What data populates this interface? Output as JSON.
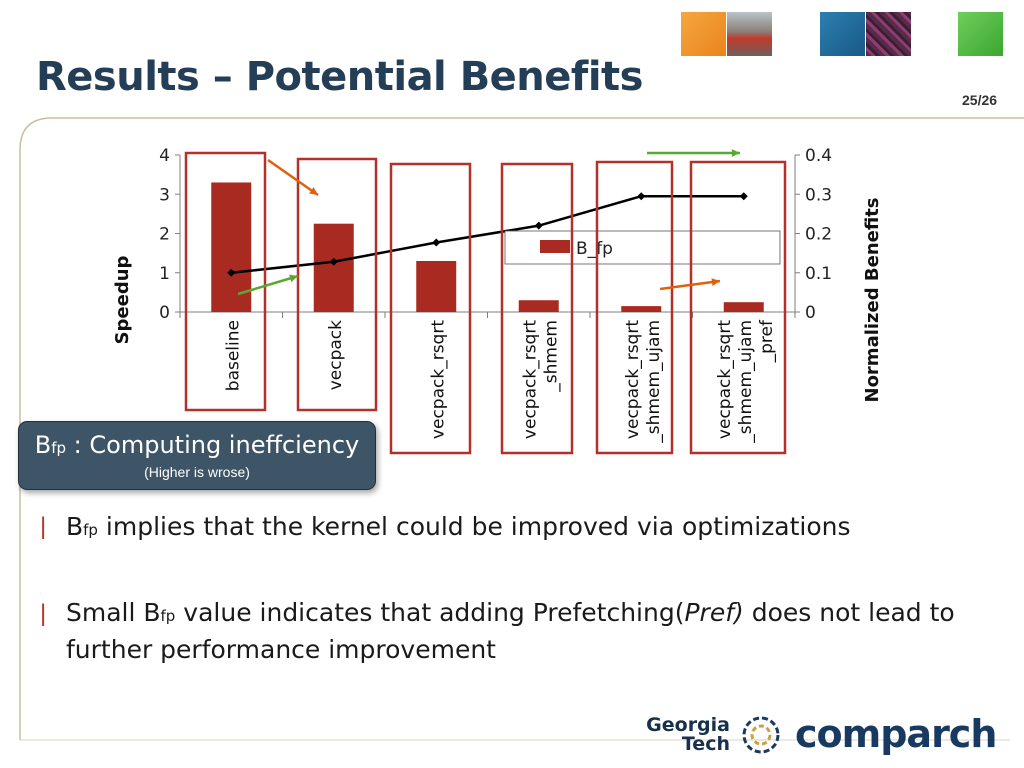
{
  "title": "Results – Potential Benefits",
  "page_number": "25/26",
  "colors": {
    "accent_frame": "#c5bfa0",
    "bar": "#a92a20",
    "box": "#b3312a",
    "line": "#000000",
    "arrow_orange": "#e06010",
    "arrow_green": "#5aa832",
    "title": "#233e56"
  },
  "header_tiles": [
    "orange-tile",
    "campus-photo-tile",
    "blue-tile",
    "circuit-tile",
    "green-tile"
  ],
  "chart_data": {
    "type": "bar",
    "categories": [
      "baseline",
      "vecpack",
      "vecpack_rsqrt",
      "vecpack_rsqrt_shmem",
      "vecpack_rsqrt_shmem_ujam",
      "vecpack_rsqrt_shmem_ujam_pref"
    ],
    "tick_labels": [
      [
        "baseline"
      ],
      [
        "vecpack"
      ],
      [
        "vecpack_rsqrt"
      ],
      [
        "vecpack_rsqrt",
        "_shmem"
      ],
      [
        "vecpack_rsqrt",
        "_shmem_ujam"
      ],
      [
        "vecpack_rsqrt",
        "_shmem_ujam",
        "_pref"
      ]
    ],
    "series": [
      {
        "name": "B_fp",
        "type": "bar",
        "axis": "right",
        "values": [
          0.33,
          0.225,
          0.13,
          0.03,
          0.015,
          0.025
        ]
      },
      {
        "type": "line",
        "axis": "left",
        "values": [
          1.0,
          1.28,
          1.77,
          2.2,
          2.95,
          2.95
        ]
      }
    ],
    "ylabel": "Speedup",
    "y2label": "Normalized Benefits",
    "ylim": [
      0,
      4
    ],
    "y2lim": [
      0,
      0.4
    ],
    "yticks": [
      "0",
      "1",
      "2",
      "3",
      "4"
    ],
    "y2ticks": [
      "0",
      "0.1",
      "0.2",
      "0.3",
      "0.4"
    ],
    "grid": false,
    "legend": "center-right"
  },
  "callout": {
    "symbol": "B",
    "symbol_sub": "fp",
    "text": " : Computing ineffciency",
    "note": "(Higher is wrose)"
  },
  "bullets": [
    {
      "marker": "|",
      "pre": "B",
      "sub": "fp",
      "text": " implies that the kernel could be improved via optimizations"
    },
    {
      "marker": "|",
      "pre": "Small B",
      "sub": "fp",
      "text1": " value indicates that adding Prefetching(",
      "italic": "Pref)",
      "text2": " does not lead to further performance improvement"
    }
  ],
  "footer": {
    "gt_line1": "Georgia",
    "gt_line2": "Tech",
    "comparch": "comparch"
  }
}
